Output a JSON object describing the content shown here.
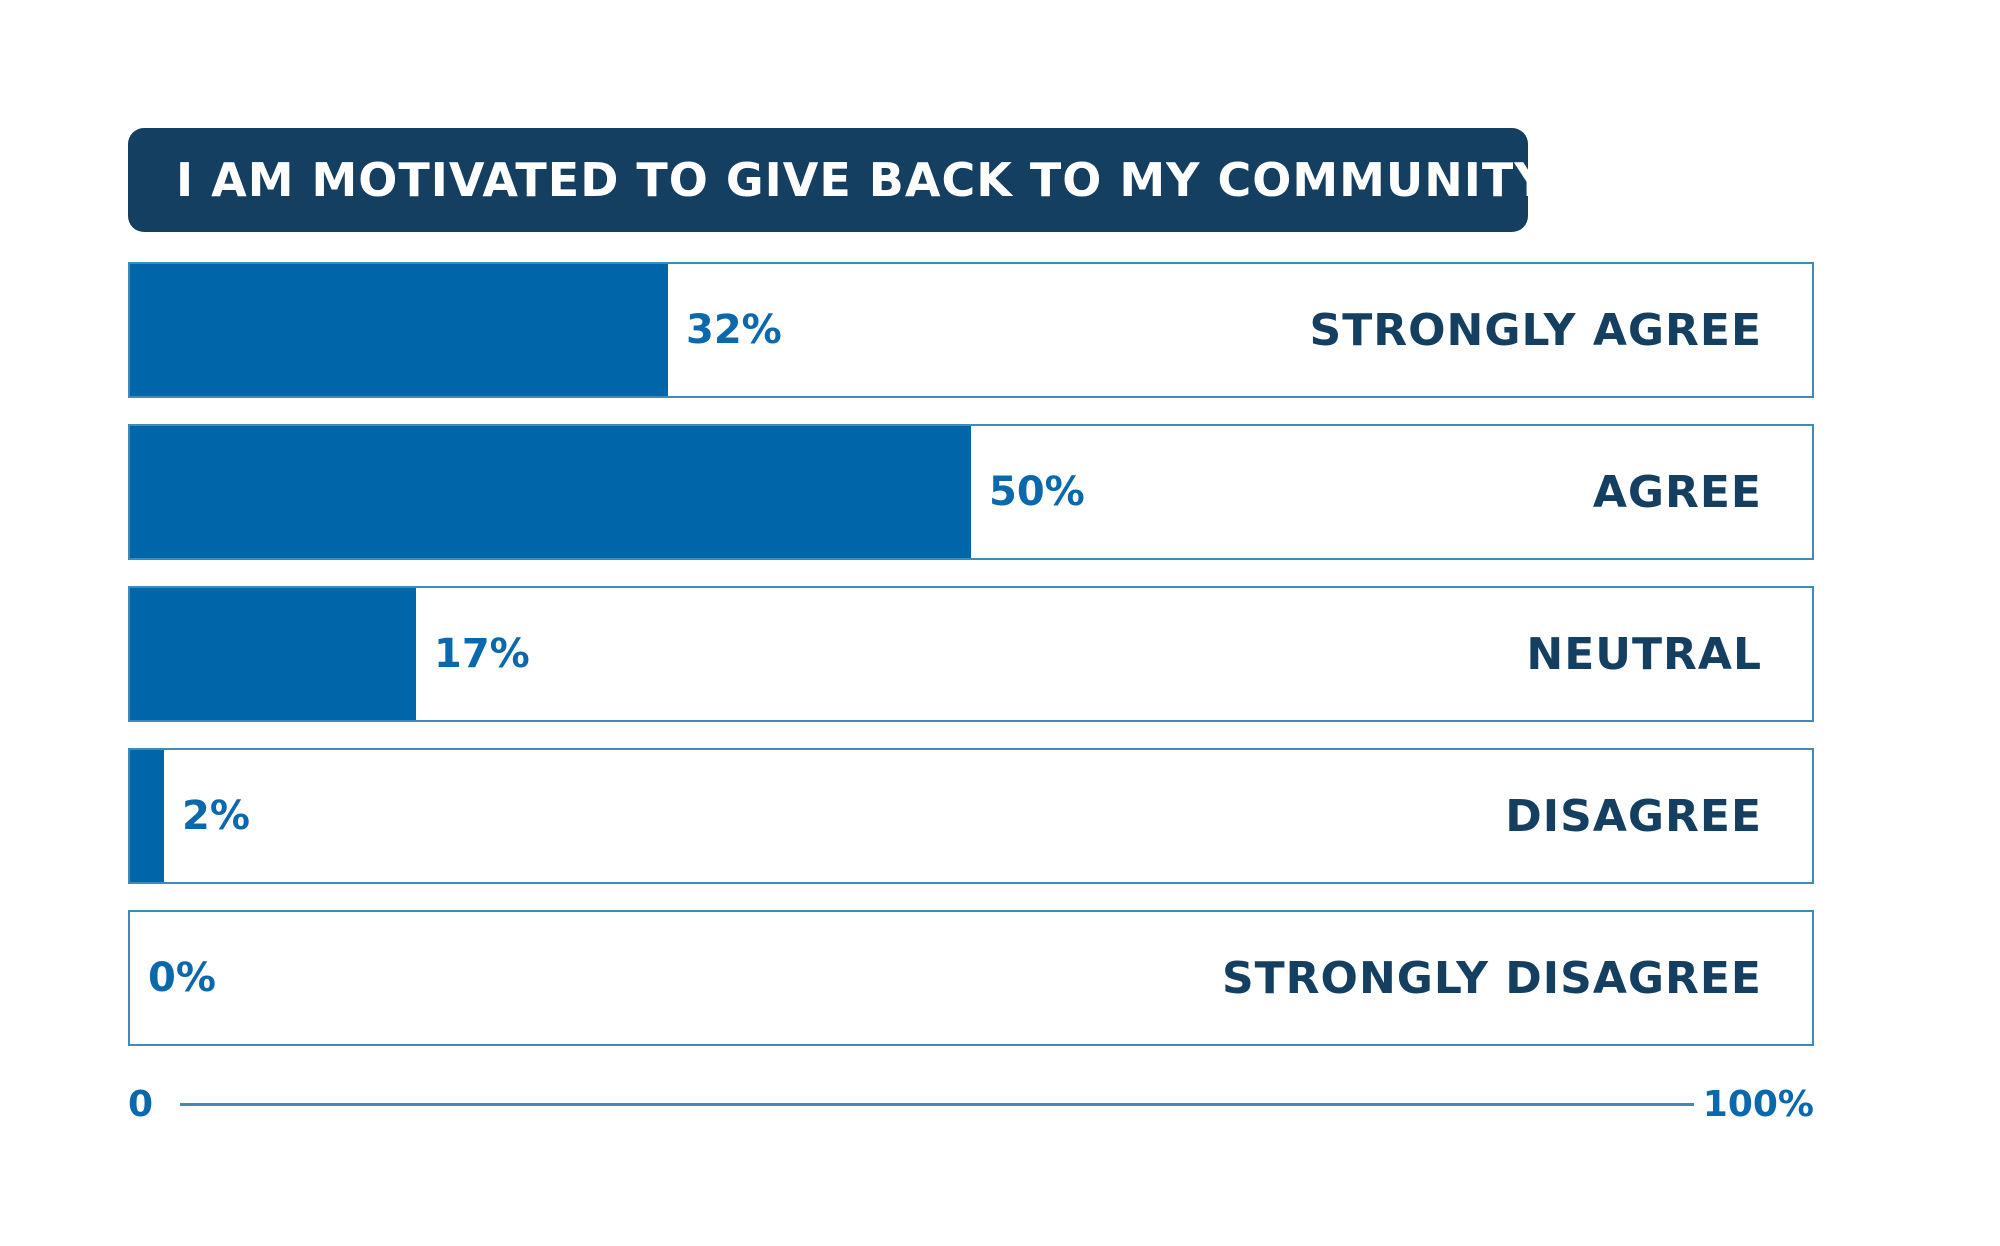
{
  "chart_data": {
    "type": "bar",
    "orientation": "horizontal",
    "title": "I AM MOTIVATED TO GIVE BACK TO MY COMMUNITY",
    "categories": [
      "STRONGLY AGREE",
      "AGREE",
      "NEUTRAL",
      "DISAGREE",
      "STRONGLY DISAGREE"
    ],
    "values": [
      32,
      50,
      17,
      2,
      0
    ],
    "value_labels": [
      "32%",
      "50%",
      "17%",
      "2%",
      "0%"
    ],
    "xlim": [
      0,
      100
    ],
    "axis": {
      "min_label": "0",
      "max_label": "100%"
    },
    "grid": false,
    "legend": "none",
    "colors": {
      "bar": "#0066aa",
      "title_background": "#143f61",
      "value_text": "#0a68ad",
      "category_text": "#143f61",
      "row_border": "#3f8ab8"
    }
  }
}
